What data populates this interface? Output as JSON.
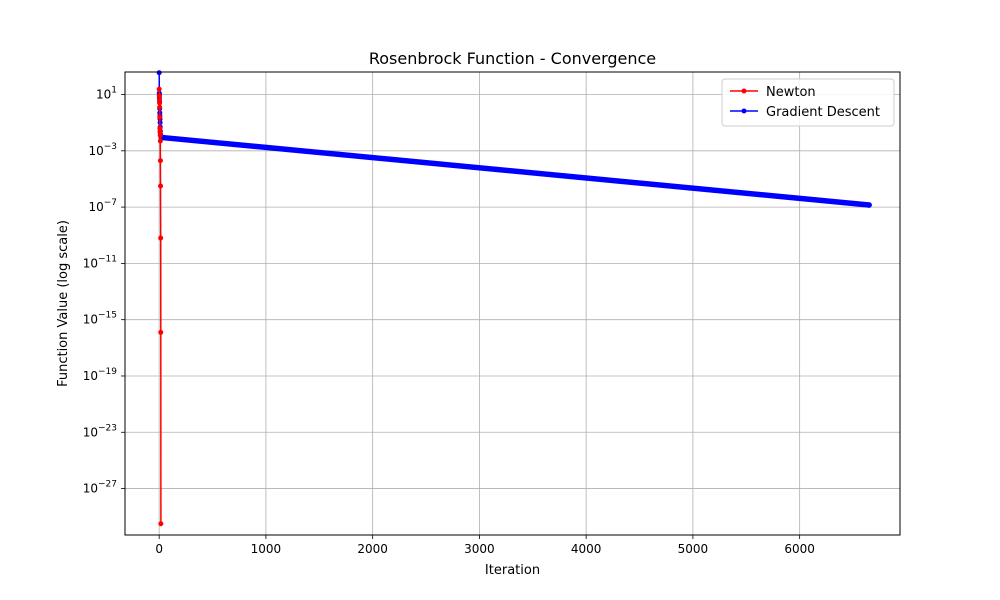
{
  "chart_data": {
    "type": "line",
    "title": "Rosenbrock Function - Convergence",
    "xlabel": "Iteration",
    "ylabel": "Function Value (log scale)",
    "xlim": [
      -320,
      6940
    ],
    "ylim_log10": [
      -30.3,
      2.6
    ],
    "y_scale": "log",
    "grid": true,
    "legend_position": "upper right",
    "x_ticks": [
      0,
      1000,
      2000,
      3000,
      4000,
      5000,
      6000
    ],
    "x_tick_labels": [
      "0",
      "1000",
      "2000",
      "3000",
      "4000",
      "5000",
      "6000"
    ],
    "y_ticks_exp": [
      1,
      -3,
      -7,
      -11,
      -15,
      -19,
      -23,
      -27
    ],
    "y_tick_base": "10",
    "series": [
      {
        "name": "Newton",
        "color": "#ff0000",
        "x": [
          0,
          1,
          2,
          3,
          4,
          5,
          6,
          7,
          8,
          9,
          10,
          11,
          12,
          13,
          14,
          15,
          16
        ],
        "y_log10": [
          1.38,
          0.9,
          0.9,
          0.6,
          0.4,
          0.1,
          -0.6,
          -1.4,
          -1.6,
          -1.7,
          -1.9,
          -2.3,
          -3.7,
          -5.5,
          -9.2,
          -15.9,
          -29.5
        ]
      },
      {
        "name": "Gradient Descent",
        "color": "#0000ff",
        "start": [
          [
            0,
            2.55
          ],
          [
            1,
            1.1
          ],
          [
            2,
            0.75
          ],
          [
            3,
            1.0
          ],
          [
            4,
            0.5
          ],
          [
            5,
            0.0
          ],
          [
            6,
            -0.3
          ],
          [
            7,
            -0.5
          ],
          [
            8,
            -0.75
          ],
          [
            9,
            -1.0
          ],
          [
            10,
            -1.3
          ],
          [
            12,
            -1.6
          ],
          [
            14,
            -1.85
          ],
          [
            16,
            -2.0
          ],
          [
            20,
            -2.05
          ]
        ],
        "end": [
          6650,
          -6.85
        ]
      }
    ]
  }
}
